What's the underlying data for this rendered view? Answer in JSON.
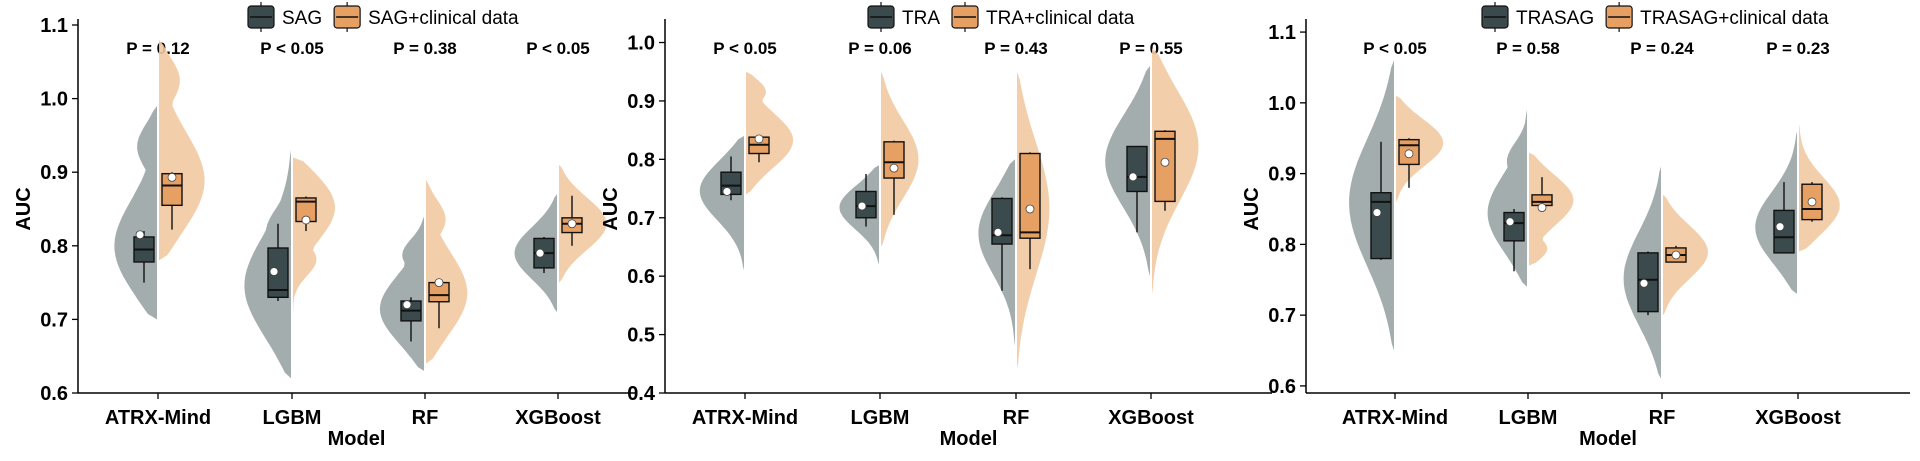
{
  "colors": {
    "baseline": "#3b4a4c",
    "baseline_violin": "#9aa4a5",
    "clinical": "#e6a064",
    "clinical_violin": "#f2c9a1",
    "mean_dot": "#ffffff"
  },
  "chart_data": [
    {
      "type": "box",
      "xlabel": "Model",
      "ylabel": "AUC",
      "ylim": [
        0.6,
        1.1
      ],
      "yticks": [
        "0.6",
        "0.7",
        "0.8",
        "0.9",
        "1.0",
        "1.1"
      ],
      "categories": [
        "ATRX-Mind",
        "LGBM",
        "RF",
        "XGBoost"
      ],
      "legend": [
        "SAG",
        "SAG+clinical data"
      ],
      "pvalues": [
        "P = 0.12",
        "P < 0.05",
        "P = 0.38",
        "P < 0.05"
      ],
      "series": [
        {
          "name": "SAG",
          "boxes": [
            {
              "min": 0.75,
              "q1": 0.778,
              "med": 0.795,
              "q3": 0.812,
              "max": 0.82,
              "mean": 0.815
            },
            {
              "min": 0.725,
              "q1": 0.73,
              "med": 0.74,
              "q3": 0.797,
              "max": 0.83,
              "mean": 0.765
            },
            {
              "min": 0.67,
              "q1": 0.698,
              "med": 0.712,
              "q3": 0.725,
              "max": 0.73,
              "mean": 0.72
            },
            {
              "min": 0.763,
              "q1": 0.77,
              "med": 0.79,
              "q3": 0.81,
              "max": 0.812,
              "mean": 0.79
            }
          ],
          "violins": [
            {
              "lo": 0.7,
              "hi": 0.99,
              "peak": 0.79,
              "peak2": 0.94,
              "w": 0.9
            },
            {
              "lo": 0.62,
              "hi": 0.93,
              "peak": 0.74,
              "peak2": 0.82,
              "w": 0.95
            },
            {
              "lo": 0.63,
              "hi": 0.84,
              "peak": 0.71,
              "peak2": 0.79,
              "w": 0.9
            },
            {
              "lo": 0.71,
              "hi": 0.87,
              "peak": 0.79,
              "peak2": 0.79,
              "w": 0.85
            }
          ]
        },
        {
          "name": "SAG+clinical data",
          "boxes": [
            {
              "min": 0.822,
              "q1": 0.855,
              "med": 0.882,
              "q3": 0.898,
              "max": 0.9,
              "mean": 0.893
            },
            {
              "min": 0.82,
              "q1": 0.833,
              "med": 0.86,
              "q3": 0.865,
              "max": 0.867,
              "mean": 0.835
            },
            {
              "min": 0.688,
              "q1": 0.724,
              "med": 0.733,
              "q3": 0.75,
              "max": 0.752,
              "mean": 0.75
            },
            {
              "min": 0.8,
              "q1": 0.818,
              "med": 0.83,
              "q3": 0.838,
              "max": 0.868,
              "mean": 0.83
            }
          ],
          "violins": [
            {
              "lo": 0.78,
              "hi": 1.08,
              "peak": 0.88,
              "peak2": 1.03,
              "w": 0.95
            },
            {
              "lo": 0.71,
              "hi": 0.92,
              "peak": 0.86,
              "peak2": 0.78,
              "w": 0.9
            },
            {
              "lo": 0.64,
              "hi": 0.89,
              "peak": 0.73,
              "peak2": 0.84,
              "w": 0.85
            },
            {
              "lo": 0.75,
              "hi": 0.91,
              "peak": 0.83,
              "peak2": 0.83,
              "w": 0.95
            }
          ]
        }
      ]
    },
    {
      "type": "box",
      "xlabel": "Model",
      "ylabel": "AUC",
      "ylim": [
        0.4,
        1.03
      ],
      "yticks": [
        "0.4",
        "0.5",
        "0.6",
        "0.7",
        "0.8",
        "0.9",
        "1.0"
      ],
      "categories": [
        "ATRX-Mind",
        "LGBM",
        "RF",
        "XGBoost"
      ],
      "legend": [
        "TRA",
        "TRA+clinical data"
      ],
      "pvalues": [
        "P < 0.05",
        "P = 0.06",
        "P = 0.43",
        "P = 0.55"
      ],
      "series": [
        {
          "name": "TRA",
          "boxes": [
            {
              "min": 0.73,
              "q1": 0.74,
              "med": 0.755,
              "q3": 0.778,
              "max": 0.805,
              "mean": 0.745
            },
            {
              "min": 0.685,
              "q1": 0.7,
              "med": 0.72,
              "q3": 0.745,
              "max": 0.775,
              "mean": 0.72
            },
            {
              "min": 0.575,
              "q1": 0.655,
              "med": 0.67,
              "q3": 0.733,
              "max": 0.735,
              "mean": 0.675
            },
            {
              "min": 0.675,
              "q1": 0.745,
              "med": 0.77,
              "q3": 0.822,
              "max": 0.823,
              "mean": 0.77
            }
          ],
          "violins": [
            {
              "lo": 0.61,
              "hi": 0.84,
              "peak": 0.75,
              "peak2": 0.75,
              "w": 0.9
            },
            {
              "lo": 0.62,
              "hi": 0.79,
              "peak": 0.72,
              "peak2": 0.72,
              "w": 0.8
            },
            {
              "lo": 0.48,
              "hi": 0.8,
              "peak": 0.68,
              "peak2": 0.68,
              "w": 0.75
            },
            {
              "lo": 0.6,
              "hi": 0.96,
              "peak": 0.8,
              "peak2": 0.8,
              "w": 0.9
            }
          ]
        },
        {
          "name": "TRA+clinical data",
          "boxes": [
            {
              "min": 0.795,
              "q1": 0.81,
              "med": 0.825,
              "q3": 0.838,
              "max": 0.84,
              "mean": 0.835
            },
            {
              "min": 0.705,
              "q1": 0.768,
              "med": 0.795,
              "q3": 0.83,
              "max": 0.832,
              "mean": 0.785
            },
            {
              "min": 0.612,
              "q1": 0.665,
              "med": 0.675,
              "q3": 0.81,
              "max": 0.812,
              "mean": 0.715
            },
            {
              "min": 0.712,
              "q1": 0.728,
              "med": 0.835,
              "q3": 0.848,
              "max": 0.85,
              "mean": 0.795
            }
          ],
          "violins": [
            {
              "lo": 0.74,
              "hi": 0.95,
              "peak": 0.83,
              "peak2": 0.92,
              "w": 0.95
            },
            {
              "lo": 0.65,
              "hi": 0.95,
              "peak": 0.8,
              "peak2": 0.8,
              "w": 0.75
            },
            {
              "lo": 0.44,
              "hi": 0.95,
              "peak": 0.72,
              "peak2": 0.72,
              "w": 0.65
            },
            {
              "lo": 0.57,
              "hi": 0.99,
              "peak": 0.83,
              "peak2": 0.83,
              "w": 0.95
            }
          ]
        }
      ]
    },
    {
      "type": "box",
      "xlabel": "Model",
      "ylabel": "AUC",
      "ylim": [
        0.59,
        1.11
      ],
      "yticks": [
        "0.6",
        "0.7",
        "0.8",
        "0.9",
        "1.0",
        "1.1"
      ],
      "categories": [
        "ATRX-Mind",
        "LGBM",
        "RF",
        "XGBoost"
      ],
      "legend": [
        "TRASAG",
        "TRASAG+clinical data"
      ],
      "pvalues": [
        "P < 0.05",
        "P = 0.58",
        "P = 0.24",
        "P = 0.23"
      ],
      "series": [
        {
          "name": "TRASAG",
          "boxes": [
            {
              "min": 0.778,
              "q1": 0.78,
              "med": 0.86,
              "q3": 0.873,
              "max": 0.945,
              "mean": 0.845
            },
            {
              "min": 0.762,
              "q1": 0.805,
              "med": 0.83,
              "q3": 0.845,
              "max": 0.85,
              "mean": 0.832
            },
            {
              "min": 0.7,
              "q1": 0.705,
              "med": 0.75,
              "q3": 0.788,
              "max": 0.79,
              "mean": 0.745
            },
            {
              "min": 0.788,
              "q1": 0.788,
              "med": 0.81,
              "q3": 0.848,
              "max": 0.888,
              "mean": 0.825
            }
          ],
          "violins": [
            {
              "lo": 0.65,
              "hi": 1.06,
              "peak": 0.86,
              "peak2": 0.86,
              "w": 0.9
            },
            {
              "lo": 0.74,
              "hi": 0.99,
              "peak": 0.84,
              "peak2": 0.92,
              "w": 0.8
            },
            {
              "lo": 0.61,
              "hi": 0.91,
              "peak": 0.75,
              "peak2": 0.75,
              "w": 0.75
            },
            {
              "lo": 0.73,
              "hi": 0.96,
              "peak": 0.82,
              "peak2": 0.82,
              "w": 0.85
            }
          ]
        },
        {
          "name": "TRASAG+clinical data",
          "boxes": [
            {
              "min": 0.88,
              "q1": 0.913,
              "med": 0.94,
              "q3": 0.948,
              "max": 0.95,
              "mean": 0.928
            },
            {
              "min": 0.852,
              "q1": 0.855,
              "med": 0.86,
              "q3": 0.87,
              "max": 0.895,
              "mean": 0.852
            },
            {
              "min": 0.775,
              "q1": 0.775,
              "med": 0.785,
              "q3": 0.795,
              "max": 0.798,
              "mean": 0.785
            },
            {
              "min": 0.832,
              "q1": 0.835,
              "med": 0.85,
              "q3": 0.885,
              "max": 0.888,
              "mean": 0.86
            }
          ],
          "violins": [
            {
              "lo": 0.86,
              "hi": 1.01,
              "peak": 0.945,
              "peak2": 0.945,
              "w": 0.95
            },
            {
              "lo": 0.77,
              "hi": 0.93,
              "peak": 0.865,
              "peak2": 0.79,
              "w": 0.9
            },
            {
              "lo": 0.7,
              "hi": 0.87,
              "peak": 0.79,
              "peak2": 0.79,
              "w": 0.9
            },
            {
              "lo": 0.79,
              "hi": 0.97,
              "peak": 0.85,
              "peak2": 0.85,
              "w": 0.85
            }
          ]
        }
      ]
    }
  ]
}
